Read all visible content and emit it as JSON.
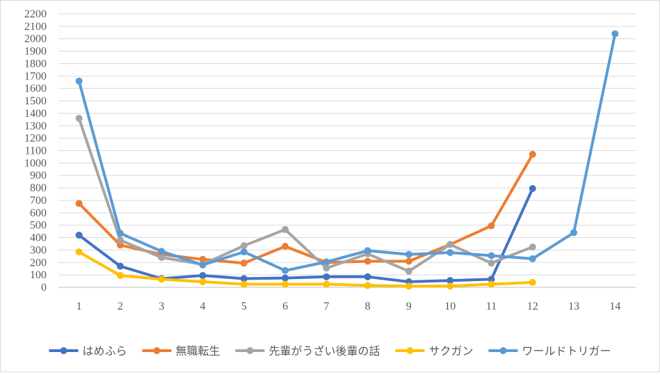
{
  "chart_data": {
    "type": "line",
    "title": "",
    "xlabel": "",
    "ylabel": "",
    "categories": [
      "1",
      "2",
      "3",
      "4",
      "5",
      "6",
      "7",
      "8",
      "9",
      "10",
      "11",
      "12",
      "13",
      "14"
    ],
    "ylim": [
      0,
      2200
    ],
    "ytick_step": 100,
    "grid": true,
    "legend_position": "bottom",
    "series": [
      {
        "name": "はめふら",
        "color": "#4472c4",
        "values": [
          420,
          170,
          70,
          95,
          70,
          75,
          85,
          85,
          45,
          55,
          65,
          795,
          null,
          null
        ]
      },
      {
        "name": "無職転生",
        "color": "#ed7d31",
        "values": [
          675,
          340,
          265,
          225,
          195,
          330,
          200,
          210,
          210,
          345,
          495,
          1070,
          null,
          null
        ]
      },
      {
        "name": "先輩がうざい後輩の話",
        "color": "#a5a5a5",
        "values": [
          1360,
          380,
          240,
          185,
          335,
          465,
          155,
          270,
          130,
          345,
          195,
          325,
          null,
          null
        ]
      },
      {
        "name": "サクガン",
        "color": "#ffc000",
        "values": [
          285,
          95,
          65,
          45,
          25,
          25,
          25,
          15,
          10,
          10,
          25,
          40,
          null,
          null
        ]
      },
      {
        "name": "ワールドトリガー",
        "color": "#5b9bd5",
        "values": [
          1660,
          435,
          290,
          180,
          285,
          135,
          205,
          295,
          265,
          280,
          255,
          230,
          440,
          2040
        ]
      }
    ]
  }
}
